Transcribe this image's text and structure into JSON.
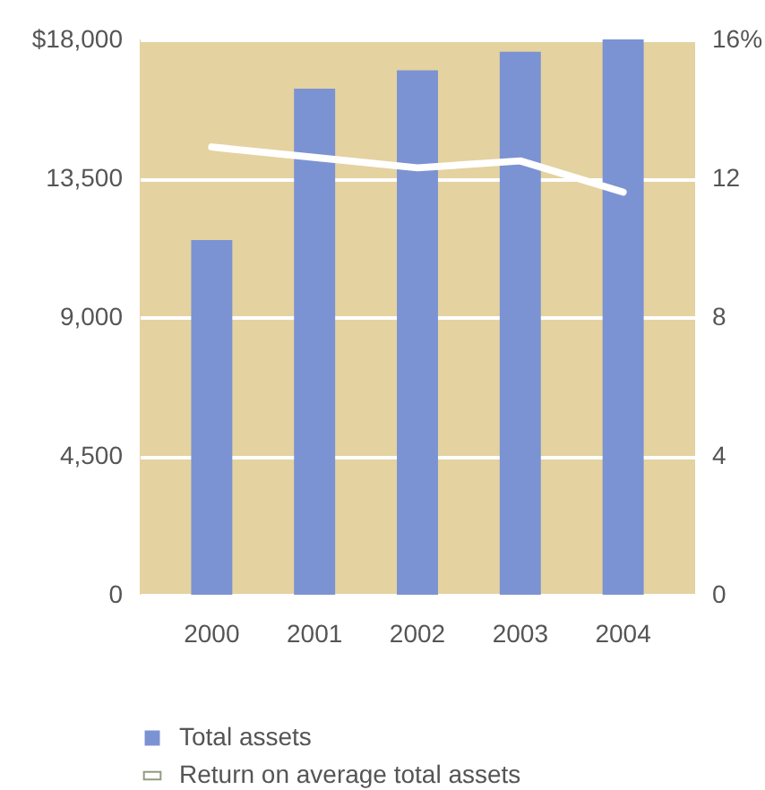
{
  "chart_data": {
    "type": "bar",
    "categories": [
      "2000",
      "2001",
      "2002",
      "2003",
      "2004"
    ],
    "series": [
      {
        "name": "Total assets",
        "color": "#7b93d2",
        "values": [
          11500,
          16400,
          17000,
          17600,
          18000
        ]
      },
      {
        "name": "Return on average total assets",
        "type": "line",
        "axis": "y2",
        "color": "#ffffff",
        "values": [
          12.9,
          12.6,
          12.3,
          12.5,
          11.6
        ]
      }
    ],
    "ylim": [
      0,
      18000
    ],
    "yticks": [
      0,
      {
        "value": 4500,
        "label": "4,500"
      },
      {
        "value": 9000,
        "label": "9,000"
      },
      {
        "value": 13500,
        "label": "13,500"
      },
      {
        "value": 18000,
        "label": "$18,000"
      }
    ],
    "y2lim": [
      0,
      16
    ],
    "y2ticks": [
      0,
      4,
      8,
      12,
      {
        "value": 16,
        "label": "16%"
      }
    ],
    "grid": "y",
    "legend": "bottom"
  }
}
